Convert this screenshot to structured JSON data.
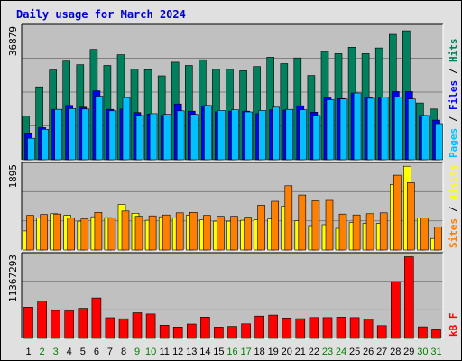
{
  "chart_data": {
    "type": "bar",
    "title": "Daily usage for March 2024",
    "days": [
      "1",
      "2",
      "3",
      "4",
      "5",
      "6",
      "7",
      "8",
      "9",
      "10",
      "11",
      "12",
      "13",
      "14",
      "15",
      "16",
      "17",
      "18",
      "19",
      "20",
      "21",
      "22",
      "23",
      "24",
      "25",
      "26",
      "27",
      "28",
      "29",
      "30",
      "31"
    ],
    "weekend_days": [
      "2",
      "3",
      "9",
      "10",
      "16",
      "17",
      "23",
      "24",
      "30",
      "31"
    ],
    "colors": {
      "hits": "#00805c",
      "files": "#0000ff",
      "pages": "#00c0ff",
      "visits": "#ffff00",
      "sites": "#ff8000",
      "kbytes": "#ff0000",
      "weekday_label": "#000000",
      "weekend_label": "#008000",
      "background": "#c0c0c0"
    },
    "panels": [
      {
        "id": "hits-files-pages",
        "ymax_label": "36879",
        "ymax": 36879,
        "legend": [
          {
            "text": "Pages",
            "color": "#00c0ff"
          },
          {
            "text": " / ",
            "color": "#000000"
          },
          {
            "text": "Files",
            "color": "#0000ff"
          },
          {
            "text": " / ",
            "color": "#000000"
          },
          {
            "text": "Hits",
            "color": "#00805c"
          }
        ],
        "series": [
          {
            "name": "Hits",
            "color": "#00805c",
            "values": [
              12200,
              20400,
              25100,
              27600,
              26600,
              30900,
              26400,
              29400,
              25400,
              25200,
              23500,
              27300,
              26400,
              28000,
              25300,
              25300,
              24900,
              26100,
              28700,
              26900,
              28500,
              23600,
              30300,
              29700,
              31500,
              29700,
              31300,
              35100,
              36100,
              15900,
              14200
            ]
          },
          {
            "name": "Files",
            "color": "#0000ff",
            "values": [
              7500,
              9000,
              14100,
              15200,
              14700,
              19300,
              14100,
              14200,
              13200,
              12800,
              12400,
              15600,
              13600,
              15100,
              13400,
              13600,
              13600,
              12900,
              14000,
              13900,
              15100,
              13300,
              17300,
              17100,
              18700,
              17500,
              17300,
              19100,
              19100,
              12400,
              11100
            ]
          },
          {
            "name": "Pages",
            "color": "#00c0ff",
            "values": [
              6000,
              8500,
              14100,
              14300,
              14200,
              17800,
              13700,
              17400,
              12400,
              12900,
              12700,
              13700,
              12700,
              15200,
              13800,
              14000,
              13400,
              13800,
              14700,
              14100,
              14000,
              12400,
              16800,
              17000,
              18700,
              17200,
              17500,
              17600,
              17000,
              12400,
              10100
            ]
          }
        ]
      },
      {
        "id": "sites-visits",
        "ymax_label": "1895",
        "ymax": 1895,
        "legend": [
          {
            "text": "Sites",
            "color": "#ff8000"
          },
          {
            "text": " / ",
            "color": "#000000"
          },
          {
            "text": "Visits",
            "color": "#ffff00"
          }
        ],
        "series": [
          {
            "name": "Visits",
            "color": "#ffff00",
            "values": [
              430,
              720,
              820,
              780,
              650,
              750,
              730,
              1030,
              830,
              670,
              750,
              720,
              780,
              680,
              650,
              650,
              670,
              680,
              700,
              990,
              660,
              550,
              570,
              490,
              620,
              600,
              600,
              1480,
              1890,
              720,
              260
            ]
          },
          {
            "name": "Sites",
            "color": "#ff8000",
            "values": [
              780,
              800,
              810,
              720,
              700,
              850,
              720,
              880,
              760,
              770,
              790,
              840,
              850,
              780,
              760,
              760,
              740,
              1010,
              1100,
              1450,
              1240,
              1110,
              1120,
              810,
              790,
              820,
              840,
              1690,
              1520,
              720,
              520
            ]
          }
        ]
      },
      {
        "id": "kbytes",
        "ymax_label": "11367293",
        "ymax": 11367293,
        "legend": [
          {
            "text": "kB F",
            "color": "#ff0000"
          }
        ],
        "series": [
          {
            "name": "kB F",
            "color": "#ff0000",
            "values": [
              4340000,
              5190000,
              3870000,
              3810000,
              4170000,
              5610000,
              2870000,
              2720000,
              3560000,
              3390000,
              1840000,
              1590000,
              2000000,
              2960000,
              1570000,
              1680000,
              2020000,
              3100000,
              3230000,
              2830000,
              2730000,
              2900000,
              2890000,
              2950000,
              2880000,
              2660000,
              1770000,
              7840000,
              11300000,
              1610000,
              1200000
            ]
          }
        ]
      }
    ]
  }
}
